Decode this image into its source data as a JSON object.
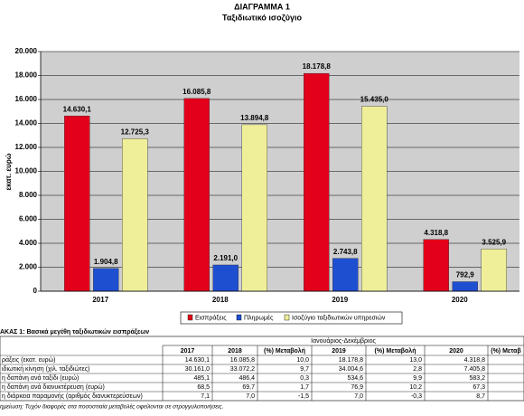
{
  "chart_data": {
    "type": "bar",
    "title": "ΔΙΑΓΡΑΜΜΑ 1",
    "subtitle": "Ταξιδιωτικό ισοζύγιο",
    "y_label": "εκατ. ευρώ",
    "categories": [
      "2017",
      "2018",
      "2019",
      "2020"
    ],
    "series": [
      {
        "name": "Εισπράξεις",
        "color": "#e3001b",
        "values": [
          14630.1,
          16085.8,
          18178.8,
          4318.8
        ],
        "value_labels": [
          "14.630,1",
          "16.085,8",
          "18.178,8",
          "4.318,8"
        ]
      },
      {
        "name": "Πληρωμές",
        "color": "#1f4fd1",
        "values": [
          1904.8,
          2191.0,
          2743.8,
          792.9
        ],
        "value_labels": [
          "1.904,8",
          "2.191,0",
          "2.743,8",
          "792,9"
        ]
      },
      {
        "name": "Ισοζύγιο ταξιδιωτικών υπηρεσιών",
        "color": "#efef9a",
        "values": [
          12725.3,
          13894.8,
          15435.0,
          3525.9
        ],
        "value_labels": [
          "12.725,3",
          "13.894,8",
          "15.435,0",
          "3.525,9"
        ]
      }
    ],
    "ylim": [
      0,
      20000
    ],
    "yticks": [
      0,
      {
        "value": 2000,
        "label": "2.000"
      },
      {
        "value": 4000,
        "label": "4.000"
      },
      {
        "value": 6000,
        "label": "6.000"
      },
      {
        "value": 8000,
        "label": "8.000"
      },
      {
        "value": 10000,
        "label": "10.000"
      },
      {
        "value": 12000,
        "label": "12.000"
      },
      {
        "value": 14000,
        "label": "14.000"
      },
      {
        "value": 16000,
        "label": "16.000"
      },
      {
        "value": 18000,
        "label": "18.000"
      },
      {
        "value": 20000,
        "label": "20.000"
      }
    ],
    "grid": true
  },
  "table": {
    "title": "ΑΚΑΣ 1: Βασικά μεγέθη ταξιδιωτικών εισπράξεων",
    "period": "Ιανουάριος-Δεκέμβριος",
    "columns": [
      "2017",
      "2018",
      "(%) Μεταβολή",
      "2019",
      "(%) Μεταβολή",
      "2020",
      "(%) Μεταβ"
    ],
    "rows": [
      [
        "ράξεις (εκατ. ευρώ)",
        "14.630,1",
        "16.085,8",
        "10,0",
        "18.178,8",
        "13,0",
        "4.318,8"
      ],
      [
        "ιδιωτική κίνηση (χιλ. ταξιδιώτες)",
        "30.161,0",
        "33.072,2",
        "9,7",
        "34.004,6",
        "2,8",
        "7.405,8"
      ],
      [
        "η δαπάνη ανά ταξίδι (ευρώ)",
        "485,1",
        "486,4",
        "0,3",
        "534,6",
        "9,9",
        "583,2"
      ],
      [
        "η δαπάνη ανά διανυκτέρευση (ευρώ)",
        "68,5",
        "69,7",
        "1,7",
        "76,9",
        "10,2",
        "67,3"
      ],
      [
        "η διάρκεια παραμονής (αριθμός διανυκτερεύσεων)",
        "7,1",
        "7,0",
        "-1,5",
        "7,0",
        "-0,3",
        "8,7"
      ]
    ],
    "note": "ημείωση: Τυχόν διαφορές στα ποσοστιαία μεταβολές οφείλονται σε στρογγυλοποιήσεις."
  }
}
